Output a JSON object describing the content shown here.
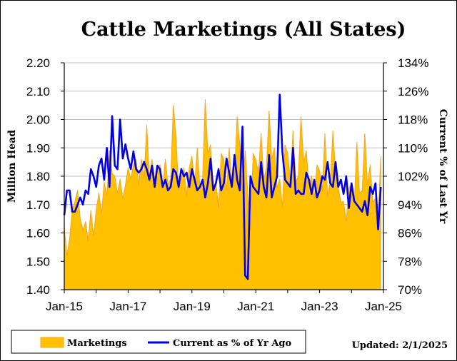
{
  "chart_data": {
    "type": "area+line",
    "title": "Cattle Marketings (All States)",
    "ylabel_left": "Million Head",
    "ylabel_right": "Current % of Last Yr",
    "updated": "Updated: 2/1/2025",
    "left_ticks": [
      "1.40",
      "1.50",
      "1.60",
      "1.70",
      "1.80",
      "1.90",
      "2.00",
      "2.10",
      "2.20"
    ],
    "left_range": [
      1.4,
      2.2
    ],
    "right_ticks": [
      "70%",
      "78%",
      "86%",
      "94%",
      "102%",
      "110%",
      "118%",
      "126%",
      "134%"
    ],
    "right_range": [
      70,
      134
    ],
    "x_ticks": [
      "Jan-15",
      "Jan-17",
      "Jan-19",
      "Jan-21",
      "Jan-23",
      "Jan-25"
    ],
    "x_start_year": 2015,
    "x_end_year": 2025,
    "grid": "horizontal",
    "colors": {
      "area_fill": "#FFC000",
      "area_edge": "#F5A623",
      "line": "#0000E6"
    },
    "series": [
      {
        "name": "Marketings",
        "type": "area",
        "axis": "left",
        "values": [
          1.62,
          1.52,
          1.58,
          1.68,
          1.71,
          1.75,
          1.65,
          1.61,
          1.64,
          1.57,
          1.68,
          1.59,
          1.68,
          1.74,
          1.67,
          1.78,
          1.73,
          1.89,
          1.81,
          1.8,
          1.74,
          1.79,
          1.72,
          1.77,
          1.83,
          1.79,
          1.84,
          1.86,
          1.77,
          1.86,
          1.79,
          1.98,
          1.8,
          1.86,
          1.79,
          1.83,
          1.84,
          1.76,
          1.86,
          1.77,
          1.79,
          2.05,
          1.94,
          1.75,
          1.79,
          1.83,
          1.73,
          1.83,
          1.87,
          1.77,
          1.9,
          1.76,
          1.79,
          2.07,
          1.88,
          1.91,
          1.76,
          1.78,
          1.69,
          1.88,
          1.86,
          1.75,
          1.9,
          1.78,
          1.81,
          2.01,
          1.91,
          1.74,
          1.89,
          1.74,
          1.61,
          1.88,
          1.86,
          1.81,
          1.95,
          1.79,
          1.83,
          2.03,
          1.86,
          1.9,
          1.76,
          1.79,
          1.69,
          1.91,
          1.88,
          1.78,
          1.96,
          1.78,
          1.8,
          2.01,
          1.85,
          1.89,
          1.77,
          1.8,
          1.72,
          1.84,
          1.82,
          1.75,
          1.95,
          1.73,
          1.78,
          1.96,
          1.81,
          1.76,
          1.71,
          1.71,
          1.64,
          1.76,
          1.77,
          1.7,
          1.92,
          1.74,
          1.75,
          1.95,
          1.77,
          1.84,
          1.71,
          1.72,
          1.65,
          1.87
        ],
        "line_style": "area"
      },
      {
        "name": "Current as % of Yr Ago",
        "type": "line",
        "axis": "right",
        "values": [
          91,
          98,
          98,
          92,
          92,
          94,
          96,
          94,
          98,
          97,
          104,
          102,
          99,
          105,
          107,
          101,
          110,
          99,
          119,
          105,
          104,
          118,
          107,
          111,
          107,
          104,
          109,
          104,
          103,
          104,
          106,
          104,
          101,
          105,
          99,
          105,
          104,
          99,
          101,
          98,
          99,
          104,
          103,
          99,
          104,
          102,
          103,
          99,
          104,
          101,
          98,
          99,
          101,
          96,
          100,
          107,
          98,
          100,
          104,
          98,
          100,
          107,
          103,
          99,
          108,
          101,
          98,
          116,
          74,
          73,
          102,
          99,
          98,
          97,
          106,
          99,
          96,
          108,
          96,
          99,
          102,
          125,
          109,
          101,
          100,
          99,
          110,
          97,
          98,
          97,
          97,
          103,
          101,
          97,
          101,
          96,
          98,
          102,
          101,
          106,
          100,
          99,
          106,
          99,
          101,
          97,
          102,
          93,
          100,
          95,
          94,
          93,
          92,
          95,
          91,
          99,
          97,
          100,
          87,
          99
        ],
        "line_style": "solid"
      }
    ]
  }
}
